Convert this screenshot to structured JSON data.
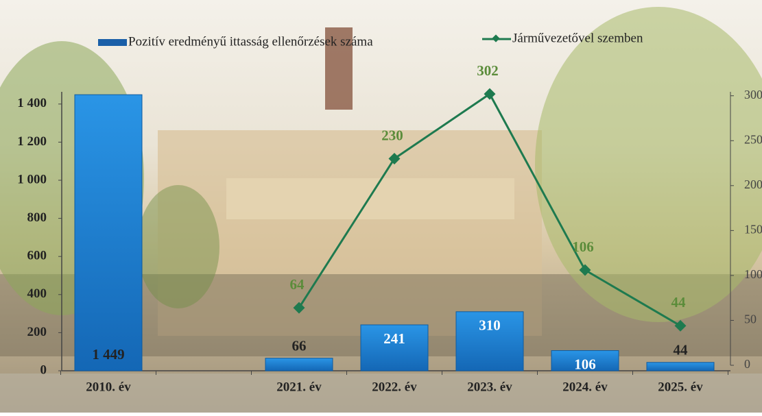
{
  "chart_data": {
    "type": "bar_line",
    "categories": [
      "2010. év",
      null,
      "2021. év",
      "2022. év",
      "2023. év",
      "2024. év",
      "2025. év"
    ],
    "series": [
      {
        "name": "Pozitív eredményű ittasság ellenőrzések száma",
        "type": "bar",
        "color": "#1a7fd0",
        "values": [
          1449,
          null,
          66,
          241,
          310,
          106,
          44
        ],
        "value_labels": [
          "1 449",
          null,
          "66",
          "241",
          "310",
          "106",
          "44"
        ]
      },
      {
        "name": "Járművezetővel szemben",
        "type": "line",
        "axis": "y2",
        "color": "#1e7a4f",
        "values": [
          null,
          null,
          64,
          230,
          302,
          106,
          44
        ]
      }
    ],
    "ylim": [
      0,
      1500
    ],
    "yticks": [
      0,
      200,
      400,
      600,
      800,
      {
        "value": 1000,
        "label": "1 000"
      },
      {
        "value": 1200,
        "label": "1 200"
      },
      {
        "value": 1400,
        "label": "1 400"
      }
    ],
    "y2lim": [
      0,
      312
    ],
    "y2ticks": [
      0,
      50,
      100,
      150,
      200,
      250,
      300
    ]
  }
}
